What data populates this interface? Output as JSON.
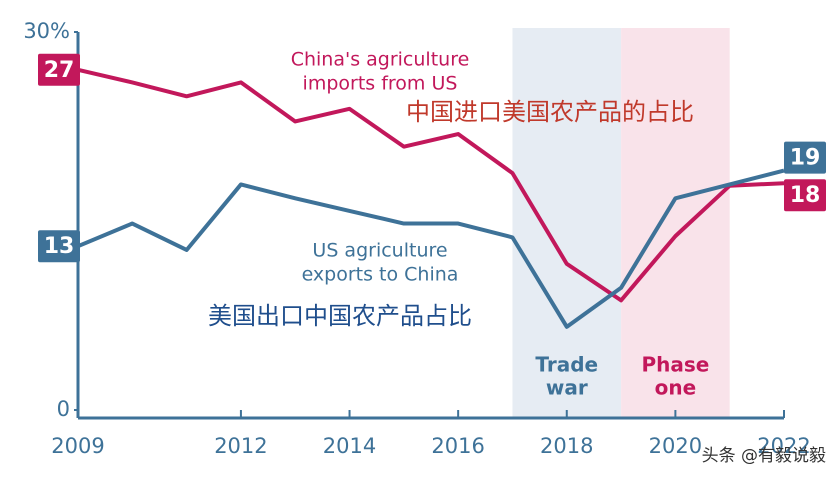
{
  "chart_data": {
    "type": "line",
    "x": [
      2009,
      2010,
      2011,
      2012,
      2013,
      2014,
      2015,
      2016,
      2017,
      2018,
      2019,
      2020,
      2021,
      2022
    ],
    "xlim": [
      2009,
      2022
    ],
    "xticks": [
      2009,
      2012,
      2014,
      2016,
      2018,
      2020,
      2022
    ],
    "ylim": [
      0,
      30
    ],
    "yticks": [
      0,
      {
        "value": 30,
        "label": "30%"
      }
    ],
    "series": [
      {
        "name_lines": [
          "China's agriculture",
          "imports from US"
        ],
        "label_cn": "中国进口美国农产品的占比",
        "color": "#c2185b",
        "values": [
          27,
          26,
          24.9,
          26,
          22.9,
          23.9,
          20.9,
          21.9,
          18.8,
          11.6,
          8.7,
          13.8,
          17.8,
          18
        ]
      },
      {
        "name_lines": [
          "US agriculture",
          "exports to China"
        ],
        "label_cn": "美国出口中国农产品占比",
        "color": "#3e7298",
        "values": [
          13,
          14.8,
          12.7,
          17.9,
          16.8,
          15.8,
          14.8,
          14.8,
          13.7,
          6.6,
          9.7,
          16.8,
          17.9,
          19
        ]
      }
    ],
    "periods": [
      {
        "start": 2017,
        "end": 2019,
        "label": [
          "Trade",
          "war"
        ],
        "color": "#e6ecf3",
        "text_color": "#3e7298"
      },
      {
        "start": 2019,
        "end": 2021,
        "label": [
          "Phase",
          "one"
        ],
        "color": "#f9e3ea",
        "text_color": "#c2185b"
      }
    ],
    "watermark": "头条 @有毅说毅"
  }
}
